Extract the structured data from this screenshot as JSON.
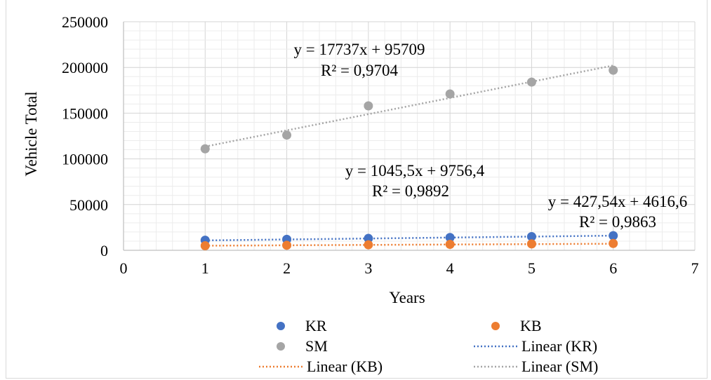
{
  "chart_data": {
    "type": "scatter",
    "xlabel": "Years",
    "ylabel": "Vehicle Total",
    "xlim": [
      0,
      7
    ],
    "ylim": [
      0,
      250000
    ],
    "xticks": [
      "0",
      "1",
      "2",
      "3",
      "4",
      "5",
      "6",
      "7"
    ],
    "yticks": [
      "0",
      "50000",
      "100000",
      "150000",
      "200000",
      "250000"
    ],
    "grid": true,
    "legend_position": "bottom",
    "series": [
      {
        "name": "KR",
        "color": "#4472c4",
        "x": [
          1,
          2,
          3,
          4,
          5,
          6
        ],
        "y": [
          11000,
          12000,
          13000,
          14000,
          15000,
          16000
        ],
        "trendline": {
          "name": "Linear (KR)",
          "slope": 1045.5,
          "intercept": 9756.4,
          "equation": "y = 1045,5x + 9756,4",
          "r2": "R² = 0,9892"
        }
      },
      {
        "name": "KB",
        "color": "#ed7d31",
        "x": [
          1,
          2,
          3,
          4,
          5,
          6
        ],
        "y": [
          5000,
          5500,
          6000,
          6500,
          7000,
          7500
        ],
        "trendline": {
          "name": "Linear (KB)",
          "slope": 427.54,
          "intercept": 4616.6,
          "equation": "y = 427,54x + 4616,6",
          "r2": "R² = 0,9863"
        }
      },
      {
        "name": "SM",
        "color": "#a5a5a5",
        "x": [
          1,
          2,
          3,
          4,
          5,
          6
        ],
        "y": [
          111000,
          126000,
          158000,
          171000,
          184000,
          197000
        ],
        "trendline": {
          "name": "Linear (SM)",
          "slope": 17737,
          "intercept": 95709,
          "equation": "y = 17737x + 95709",
          "r2": "R² = 0,9704"
        }
      }
    ]
  }
}
